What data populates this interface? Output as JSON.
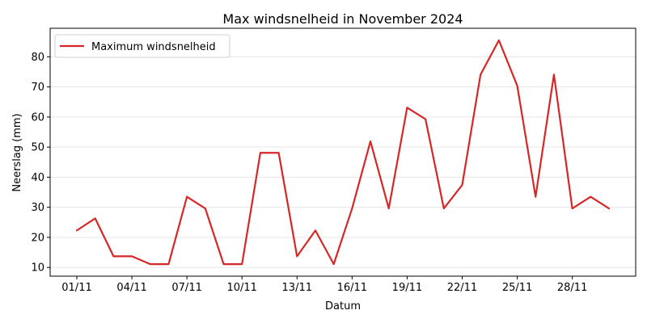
{
  "chart_data": {
    "type": "line",
    "title": "Max windsnelheid in November 2024",
    "xlabel": "Datum",
    "ylabel": "Neerslag (mm)",
    "ylim": [
      7.1,
      89.5
    ],
    "yticks": [
      10,
      20,
      30,
      40,
      50,
      60,
      70,
      80
    ],
    "grid": "horizontal",
    "legend_position": "top-left",
    "x": [
      "01/11",
      "02/11",
      "03/11",
      "04/11",
      "05/11",
      "06/11",
      "07/11",
      "08/11",
      "09/11",
      "10/11",
      "11/11",
      "12/11",
      "13/11",
      "14/11",
      "15/11",
      "16/11",
      "17/11",
      "18/11",
      "19/11",
      "20/11",
      "21/11",
      "22/11",
      "23/11",
      "24/11",
      "25/11",
      "26/11",
      "27/11",
      "28/11",
      "29/11",
      "30/11"
    ],
    "xtick_labels": [
      "01/11",
      "04/11",
      "07/11",
      "10/11",
      "13/11",
      "16/11",
      "19/11",
      "22/11",
      "25/11",
      "28/11"
    ],
    "series": [
      {
        "name": "Maximum windsnelheid",
        "color": "#d62728",
        "values": [
          22.3,
          26.3,
          13.7,
          13.7,
          11.1,
          11.1,
          33.5,
          29.6,
          11.1,
          11.1,
          48.1,
          48.1,
          13.7,
          22.3,
          11.1,
          29.6,
          51.9,
          29.6,
          63.1,
          59.3,
          29.6,
          37.4,
          74.1,
          85.5,
          70.4,
          33.5,
          74.1,
          29.6,
          33.5,
          29.6
        ]
      }
    ]
  }
}
